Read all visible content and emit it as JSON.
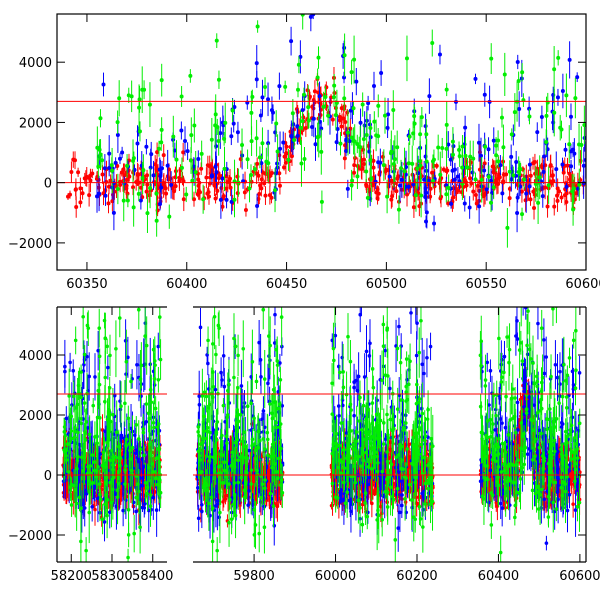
{
  "chart_data": [
    {
      "type": "scatter",
      "panel": "top",
      "title": "",
      "xlabel": "",
      "ylabel": "",
      "xlim": [
        60335,
        60600
      ],
      "ylim": [
        -2900,
        5600
      ],
      "x_ticks": [
        60350,
        60400,
        60450,
        60500,
        60550,
        60600
      ],
      "y_ticks": [
        -2000,
        0,
        2000,
        4000
      ],
      "x_tick_labels": [
        "60350",
        "60400",
        "60450",
        "60500",
        "60550",
        "60600"
      ],
      "y_tick_labels": [
        "−2000",
        "0",
        "2000",
        "4000"
      ],
      "hlines": [
        0,
        2700
      ],
      "series": [
        {
          "color": "#ff0000",
          "x_range": [
            60340,
            60600
          ],
          "baseline": 0,
          "scatter": 380,
          "err": 250,
          "peak": {
            "center": 60468,
            "height": 2900,
            "width": 11
          }
        },
        {
          "color": "#0000ff",
          "x_range": [
            60355,
            60600
          ],
          "baseline": 300,
          "scatter": 1300,
          "err": 400,
          "peak": {
            "center": 60468,
            "height": 2200,
            "width": 14
          }
        },
        {
          "color": "#00ee00",
          "x_range": [
            60355,
            60600
          ],
          "baseline": 600,
          "scatter": 1700,
          "err": 500,
          "peak": {
            "center": 60468,
            "height": 1400,
            "width": 14
          }
        }
      ],
      "grid": false,
      "legend": "none"
    },
    {
      "type": "scatter",
      "panel": "bottom",
      "title": "",
      "xlabel": "",
      "ylabel": "",
      "broken_axis": true,
      "ylim": [
        -2900,
        5600
      ],
      "y_ticks": [
        -2000,
        0,
        2000,
        4000
      ],
      "y_tick_labels": [
        "−2000",
        "0",
        "2000",
        "4000"
      ],
      "hlines": [
        0,
        2700
      ],
      "segments": [
        {
          "xlim": [
            58165,
            58435
          ],
          "x_ticks": [
            58200,
            58300,
            58400
          ],
          "x_tick_labels": [
            "58200",
            "58300",
            "58400"
          ],
          "data_range": [
            58180,
            58420
          ]
        },
        {
          "xlim": [
            59650,
            60615
          ],
          "x_ticks": [
            59800,
            60000,
            60200,
            60400,
            60600
          ],
          "x_tick_labels": [
            "59800",
            "60000",
            "60200",
            "60400",
            "60600"
          ],
          "data_ranges": [
            [
              59660,
              59870
            ],
            [
              59990,
              60240
            ],
            [
              60355,
              60600
            ]
          ]
        }
      ],
      "series": [
        {
          "color": "#ff0000",
          "baseline": 0,
          "scatter": 450,
          "err": 300,
          "peak": {
            "center": 60468,
            "height": 2600,
            "width": 12
          }
        },
        {
          "color": "#0000ff",
          "baseline": 250,
          "scatter": 1400,
          "err": 500,
          "peak": {
            "center": 60468,
            "height": 2000,
            "width": 15
          }
        },
        {
          "color": "#00ee00",
          "baseline": 500,
          "scatter": 1800,
          "err": 600,
          "peak": {
            "center": 60468,
            "height": 1200,
            "width": 15
          }
        }
      ],
      "grid": false,
      "legend": "none"
    }
  ]
}
